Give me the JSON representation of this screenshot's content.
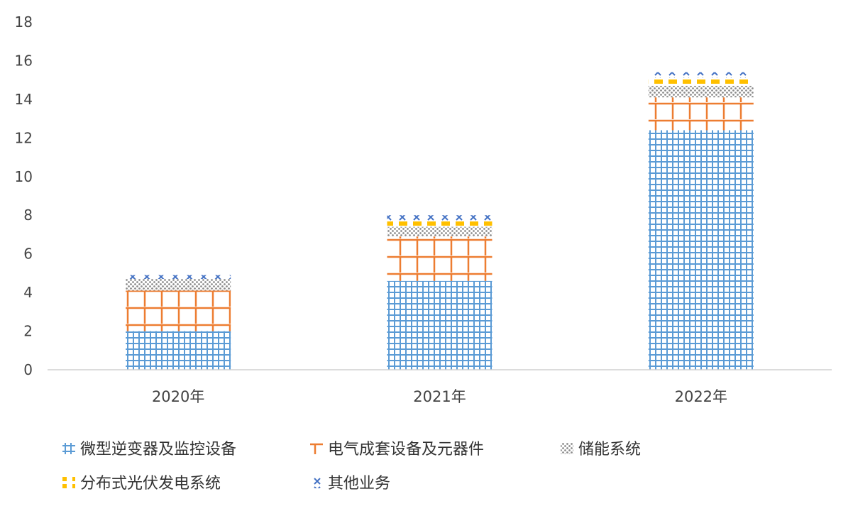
{
  "chart_data": {
    "type": "bar",
    "stacked": true,
    "categories": [
      "2020年",
      "2021年",
      "2022年"
    ],
    "series": [
      {
        "name": "微型逆变器及监控设备",
        "values": [
          2.0,
          4.6,
          12.4
        ],
        "color": "#5b9bd5",
        "pattern": "grid"
      },
      {
        "name": "电气成套设备及元器件",
        "values": [
          2.1,
          2.3,
          1.7
        ],
        "color": "#ed7d31",
        "pattern": "bracket"
      },
      {
        "name": "储能系统",
        "values": [
          0.6,
          0.5,
          0.6
        ],
        "color": "#a5a5a5",
        "pattern": "dots"
      },
      {
        "name": "分布式光伏发电系统",
        "values": [
          0.0,
          0.3,
          0.4
        ],
        "color": "#ffc000",
        "pattern": "dashes"
      },
      {
        "name": "其他业务",
        "values": [
          0.2,
          0.3,
          0.3
        ],
        "color": "#4472c4",
        "pattern": "cross"
      }
    ],
    "ylim": [
      0,
      18
    ],
    "yticks": [
      0,
      2,
      4,
      6,
      8,
      10,
      12,
      14,
      16,
      18
    ],
    "grid": false,
    "legend": "bottom"
  }
}
